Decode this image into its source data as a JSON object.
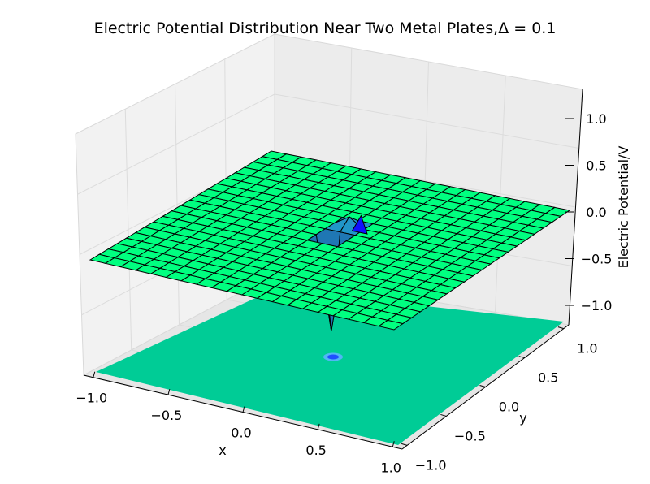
{
  "chart_data": {
    "type": "surface3d",
    "title": "Electric Potential Distribution Near Two Metal Plates,Δ = 0.1",
    "xlabel": "x",
    "ylabel": "y",
    "zlabel": "Electric Potential/V",
    "xlim": [
      -1.0,
      1.0
    ],
    "ylim": [
      -1.0,
      1.0
    ],
    "zlim": [
      -1.2,
      1.2
    ],
    "xticks": [
      "−1.0",
      "−0.5",
      "0.0",
      "0.5",
      "1.0"
    ],
    "yticks": [
      "−1.0",
      "−0.5",
      "0.0",
      "0.5",
      "1.0"
    ],
    "zticks": [
      "−1.0",
      "−0.5",
      "0.0",
      "0.5",
      "1.0"
    ],
    "grid": true,
    "surface": {
      "grid_step": 0.1,
      "base_potential": 0.0,
      "face_color": "#00ff80",
      "edge_color": "#000000",
      "features": [
        {
          "x": 0.0,
          "y": 0.0,
          "potential": -1.0,
          "label": "negative spike"
        },
        {
          "x": 0.0,
          "y": 0.2,
          "potential": 0.1,
          "label": "small bump"
        }
      ]
    },
    "contour_floor": {
      "color": "#00cc96",
      "dip_color": "#1f4fff"
    }
  }
}
